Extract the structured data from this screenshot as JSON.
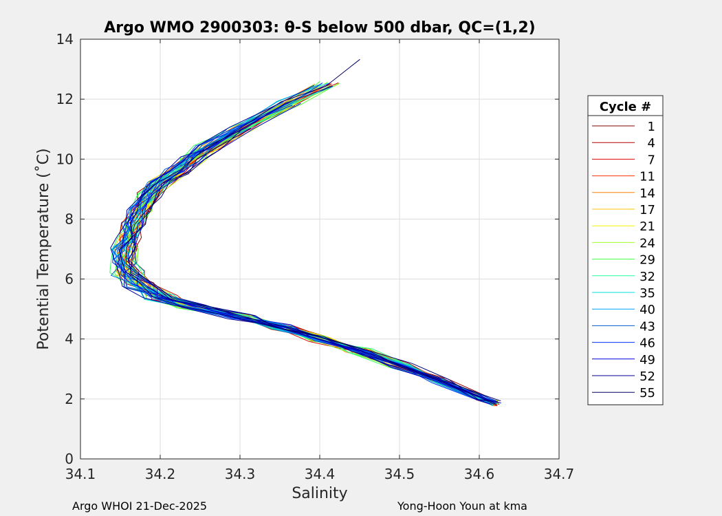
{
  "chart_data": {
    "type": "line",
    "title": "Argo WMO 2900303: θ-S below 500 dbar,  QC=(1,2)",
    "xlabel": "Salinity",
    "ylabel": "Potential Temperature (˚C)",
    "xlim": [
      34.1,
      34.7
    ],
    "ylim": [
      0,
      14
    ],
    "xticks": [
      "34.1",
      "34.2",
      "34.3",
      "34.4",
      "34.5",
      "34.6",
      "34.7"
    ],
    "yticks": [
      "0",
      "2",
      "4",
      "6",
      "8",
      "10",
      "12",
      "14"
    ],
    "grid": true,
    "legend": {
      "title": "Cycle #",
      "placement": "outside-right",
      "entries": [
        "1",
        "4",
        "7",
        "11",
        "14",
        "17",
        "21",
        "24",
        "29",
        "32",
        "35",
        "40",
        "43",
        "46",
        "49",
        "52",
        "55"
      ],
      "colors": [
        "#800000",
        "#b00000",
        "#e00000",
        "#ff3000",
        "#ff8000",
        "#ffc000",
        "#f0f000",
        "#a0ff20",
        "#40ff40",
        "#20ffa0",
        "#00e0e0",
        "#00a0ff",
        "#0060d0",
        "#0030ff",
        "#0000e0",
        "#000090",
        "#000060"
      ]
    },
    "profiles_base": {
      "S": [
        34.46,
        34.41,
        34.36,
        34.3,
        34.26,
        34.24,
        34.22,
        34.2,
        34.185,
        34.175,
        34.165,
        34.16,
        34.155,
        34.155,
        34.16,
        34.175,
        34.2,
        34.24,
        34.3,
        34.35,
        34.4,
        34.45,
        34.5,
        34.55,
        34.6,
        34.62
      ],
      "T": [
        13.25,
        12.5,
        11.85,
        11.0,
        10.4,
        10.0,
        9.6,
        9.2,
        8.8,
        8.3,
        7.8,
        7.4,
        7.0,
        6.6,
        6.2,
        5.8,
        5.4,
        5.1,
        4.75,
        4.4,
        4.0,
        3.6,
        3.1,
        2.6,
        2.05,
        1.85
      ]
    }
  },
  "footer": {
    "left": "Argo WHOI 21-Dec-2025",
    "right": "Yong-Hoon Youn at kma"
  }
}
